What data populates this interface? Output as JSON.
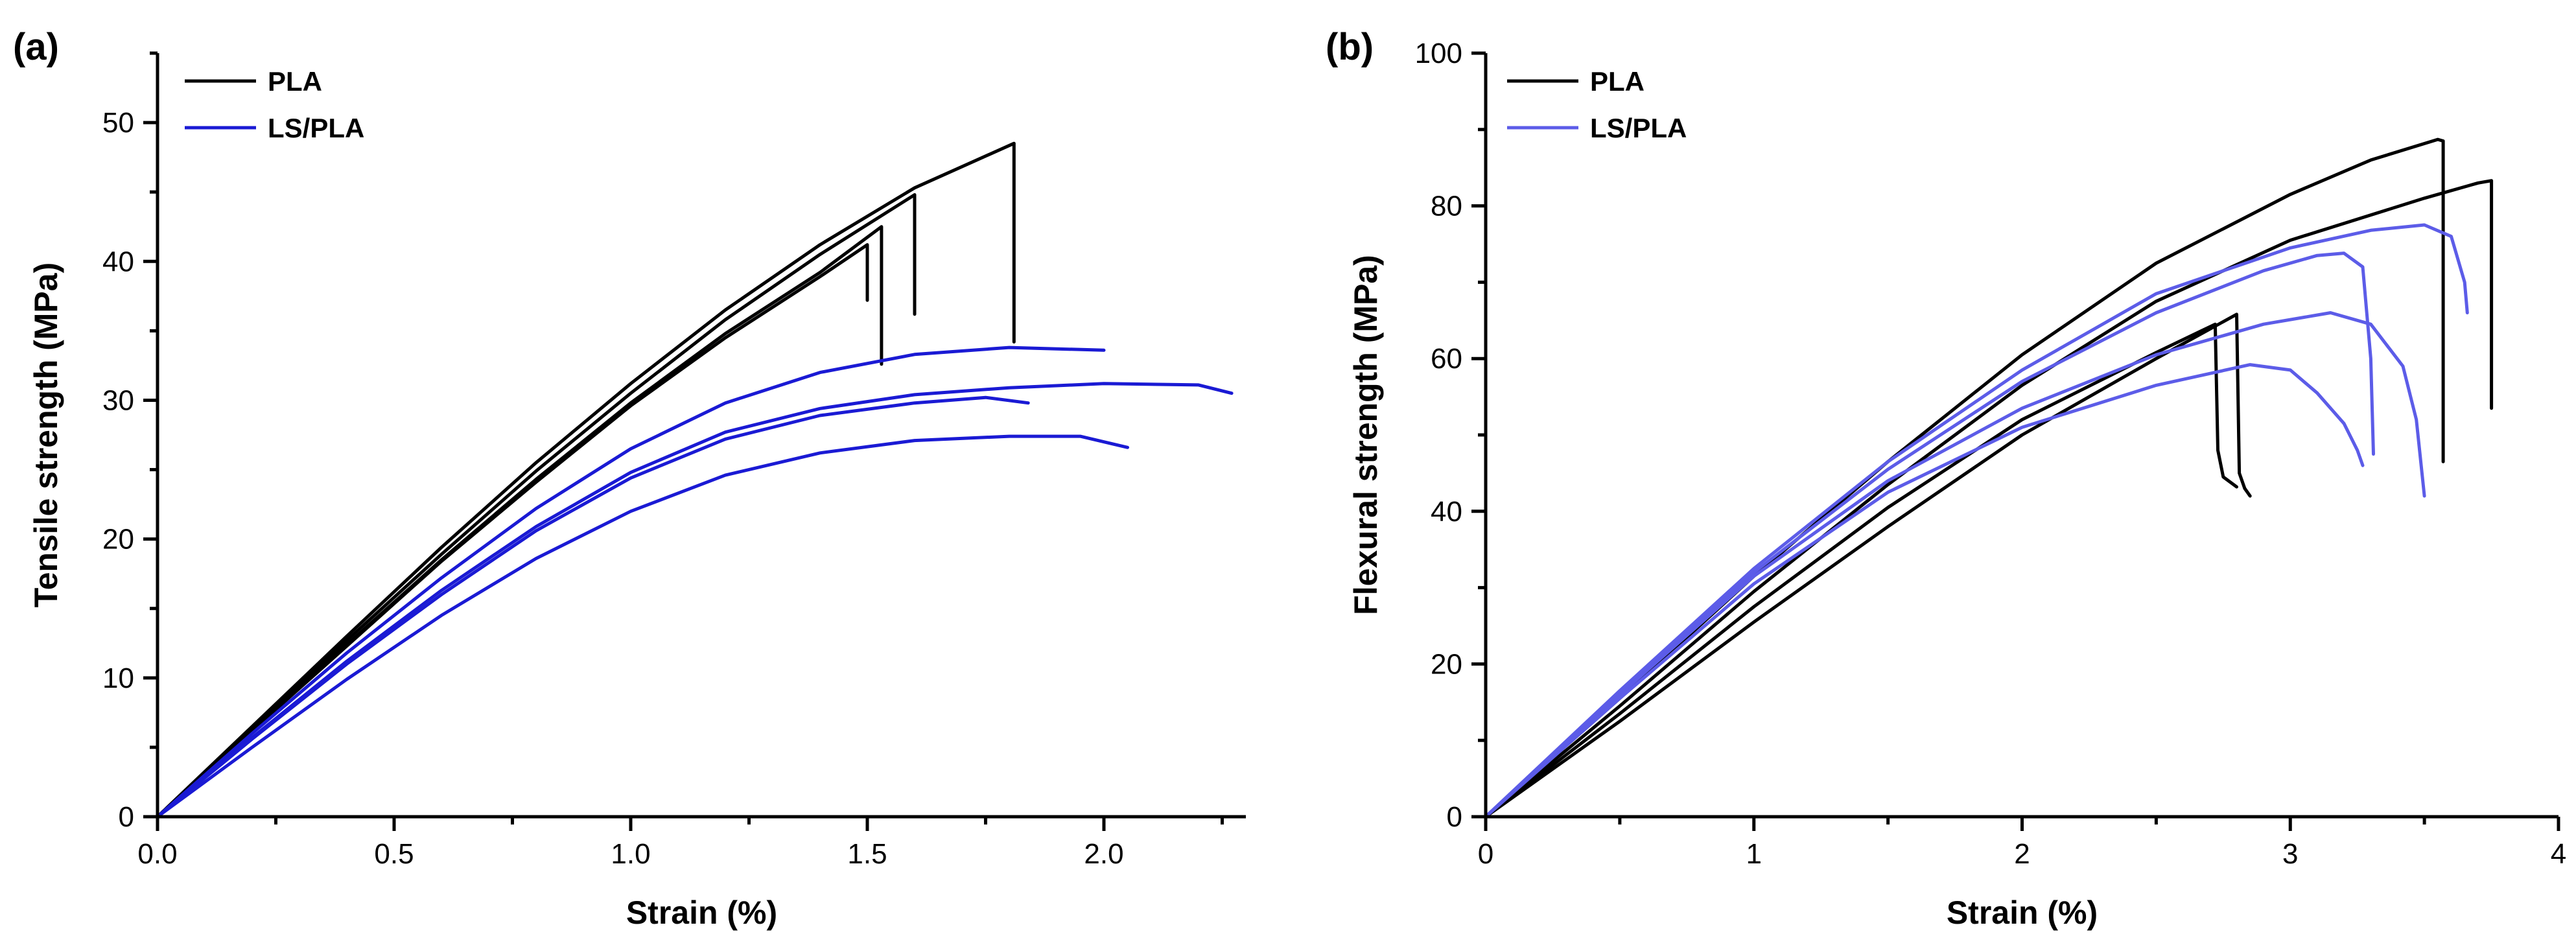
{
  "chart_data": [
    {
      "panel": "(a)",
      "type": "line",
      "xlabel": "Strain (%)",
      "ylabel": "Tensile strength (MPa)",
      "xlim": [
        0,
        2.3
      ],
      "ylim": [
        0,
        55
      ],
      "xticks": [
        0.0,
        0.5,
        1.0,
        1.5,
        2.0
      ],
      "xtick_labels": [
        "0.0",
        "0.5",
        "1.0",
        "1.5",
        "2.0"
      ],
      "yticks": [
        0,
        10,
        20,
        30,
        40,
        50
      ],
      "ytick_labels": [
        "0",
        "10",
        "20",
        "30",
        "40",
        "50"
      ],
      "xminor_step": 0.25,
      "yminor_step": 5,
      "legend": {
        "position": "top-left",
        "entries": [
          "PLA",
          "LS/PLA"
        ]
      },
      "series": [
        {
          "name": "PLA",
          "color": "#000000",
          "x": [
            0,
            0.2,
            0.4,
            0.6,
            0.8,
            1.0,
            1.2,
            1.4,
            1.6,
            1.81,
            1.81
          ],
          "y": [
            0,
            6.5,
            13,
            19.4,
            25.5,
            31.2,
            36.5,
            41.2,
            45.3,
            48.5,
            34.2
          ]
        },
        {
          "name": "PLA",
          "color": "#000000",
          "x": [
            0,
            0.2,
            0.4,
            0.6,
            0.8,
            1.0,
            1.2,
            1.4,
            1.6,
            1.6
          ],
          "y": [
            0,
            6.3,
            12.7,
            18.9,
            24.9,
            30.5,
            35.8,
            40.5,
            44.8,
            36.2
          ]
        },
        {
          "name": "PLA",
          "color": "#000000",
          "x": [
            0,
            0.2,
            0.4,
            0.6,
            0.8,
            1.0,
            1.2,
            1.4,
            1.53,
            1.53
          ],
          "y": [
            0,
            6.2,
            12.4,
            18.5,
            24.3,
            29.8,
            34.8,
            39.2,
            42.5,
            32.6
          ]
        },
        {
          "name": "PLA",
          "color": "#000000",
          "x": [
            0,
            0.2,
            0.4,
            0.6,
            0.8,
            1.0,
            1.2,
            1.4,
            1.5,
            1.5
          ],
          "y": [
            0,
            6.2,
            12.3,
            18.4,
            24.1,
            29.6,
            34.5,
            38.9,
            41.2,
            37.2
          ]
        },
        {
          "name": "LS/PLA",
          "color": "#1a1ad4",
          "x": [
            0,
            0.2,
            0.4,
            0.6,
            0.8,
            1.0,
            1.2,
            1.4,
            1.6,
            1.8,
            2.0
          ],
          "y": [
            0,
            6.0,
            11.8,
            17.2,
            22.2,
            26.5,
            29.8,
            32.0,
            33.3,
            33.8,
            33.6
          ]
        },
        {
          "name": "LS/PLA",
          "color": "#1a1ad4",
          "x": [
            0,
            0.2,
            0.4,
            0.6,
            0.8,
            1.0,
            1.2,
            1.4,
            1.6,
            1.8,
            2.0,
            2.2,
            2.27
          ],
          "y": [
            0,
            5.7,
            11.2,
            16.3,
            20.9,
            24.8,
            27.7,
            29.4,
            30.4,
            30.9,
            31.2,
            31.1,
            30.5
          ]
        },
        {
          "name": "LS/PLA",
          "color": "#1a1ad4",
          "x": [
            0,
            0.2,
            0.4,
            0.6,
            0.8,
            1.0,
            1.2,
            1.4,
            1.6,
            1.75,
            1.84
          ],
          "y": [
            0,
            5.6,
            11.0,
            16.0,
            20.6,
            24.4,
            27.2,
            28.9,
            29.8,
            30.2,
            29.8
          ]
        },
        {
          "name": "LS/PLA",
          "color": "#1a1ad4",
          "x": [
            0,
            0.2,
            0.4,
            0.6,
            0.8,
            1.0,
            1.2,
            1.4,
            1.6,
            1.8,
            1.95,
            2.05
          ],
          "y": [
            0,
            5.0,
            9.9,
            14.5,
            18.6,
            22.0,
            24.6,
            26.2,
            27.1,
            27.4,
            27.4,
            26.6
          ]
        }
      ]
    },
    {
      "panel": "(b)",
      "type": "line",
      "xlabel": "Strain (%)",
      "ylabel": "Flexural strength (MPa)",
      "xlim": [
        0,
        4
      ],
      "ylim": [
        0,
        100
      ],
      "xticks": [
        0,
        1,
        2,
        3,
        4
      ],
      "xtick_labels": [
        "0",
        "1",
        "2",
        "3",
        "4"
      ],
      "yticks": [
        0,
        20,
        40,
        60,
        80,
        100
      ],
      "ytick_labels": [
        "0",
        "20",
        "40",
        "60",
        "80",
        "100"
      ],
      "xminor_step": 0.5,
      "yminor_step": 10,
      "legend": {
        "position": "top-left",
        "entries": [
          "PLA",
          "LS/PLA"
        ]
      },
      "series": [
        {
          "name": "PLA",
          "color": "#000000",
          "x": [
            0,
            0.5,
            1.0,
            1.5,
            2.0,
            2.5,
            3.0,
            3.3,
            3.55,
            3.57,
            3.57
          ],
          "y": [
            0,
            15.5,
            31.5,
            46.5,
            60.5,
            72.5,
            81.5,
            86.0,
            88.7,
            88.5,
            46.5
          ]
        },
        {
          "name": "PLA",
          "color": "#000000",
          "x": [
            0,
            0.5,
            1.0,
            1.5,
            2.0,
            2.5,
            3.0,
            3.5,
            3.7,
            3.75,
            3.75
          ],
          "y": [
            0,
            14.5,
            29.5,
            43.5,
            56.5,
            67.5,
            75.5,
            81.0,
            83.0,
            83.3,
            53.5
          ]
        },
        {
          "name": "PLA",
          "color": "#000000",
          "x": [
            0,
            0.5,
            1.0,
            1.5,
            2.0,
            2.5,
            2.72,
            2.73,
            2.75,
            2.8
          ],
          "y": [
            0,
            13.5,
            27.5,
            40.5,
            52.0,
            60.8,
            64.5,
            48.0,
            44.5,
            43.2
          ]
        },
        {
          "name": "PLA",
          "color": "#000000",
          "x": [
            0,
            0.5,
            1.0,
            1.5,
            2.0,
            2.5,
            2.8,
            2.81,
            2.83,
            2.85
          ],
          "y": [
            0,
            12.5,
            25.5,
            38.0,
            50.0,
            60.0,
            65.8,
            45.0,
            43.0,
            42.0
          ]
        },
        {
          "name": "LS/PLA",
          "color": "#5c5ce8",
          "x": [
            0,
            0.5,
            1.0,
            1.5,
            2.0,
            2.5,
            3.0,
            3.3,
            3.5,
            3.6,
            3.65,
            3.66
          ],
          "y": [
            0,
            16.5,
            32.5,
            46.5,
            58.5,
            68.5,
            74.5,
            76.8,
            77.5,
            76.0,
            70.0,
            66.0
          ]
        },
        {
          "name": "LS/PLA",
          "color": "#5c5ce8",
          "x": [
            0,
            0.5,
            1.0,
            1.5,
            2.0,
            2.5,
            2.9,
            3.1,
            3.2,
            3.27,
            3.3,
            3.31
          ],
          "y": [
            0,
            16.0,
            32.0,
            45.5,
            57.0,
            66.0,
            71.5,
            73.5,
            73.8,
            72.0,
            60.0,
            47.5
          ]
        },
        {
          "name": "LS/PLA",
          "color": "#5c5ce8",
          "x": [
            0,
            0.5,
            1.0,
            1.5,
            2.0,
            2.5,
            2.9,
            3.15,
            3.3,
            3.42,
            3.47,
            3.5
          ],
          "y": [
            0,
            16.0,
            31.5,
            44.0,
            53.5,
            60.5,
            64.5,
            66.0,
            64.5,
            59.0,
            52.0,
            42.0
          ]
        },
        {
          "name": "LS/PLA",
          "color": "#5c5ce8",
          "x": [
            0,
            0.5,
            1.0,
            1.5,
            2.0,
            2.5,
            2.85,
            3.0,
            3.1,
            3.2,
            3.25,
            3.27
          ],
          "y": [
            0,
            15.5,
            30.5,
            42.5,
            51.0,
            56.5,
            59.2,
            58.5,
            55.5,
            51.5,
            48.0,
            46.0
          ]
        }
      ]
    }
  ]
}
